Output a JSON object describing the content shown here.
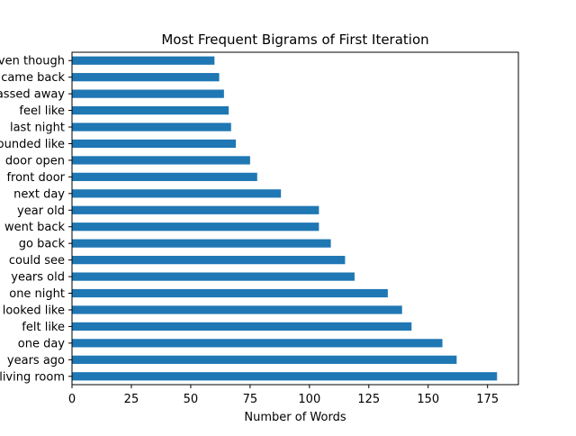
{
  "colors": {
    "bar": "#1f77b4",
    "axis": "#000000",
    "background": "#ffffff"
  },
  "chart_data": {
    "type": "bar",
    "orientation": "horizontal",
    "title": "Most Frequent Bigrams of First Iteration",
    "xlabel": "Number of Words",
    "ylabel": "",
    "xlim": [
      0,
      188
    ],
    "xticks": [
      0,
      25,
      50,
      75,
      100,
      125,
      150,
      175
    ],
    "grid": false,
    "legend": "none",
    "categories": [
      "living room",
      "years ago",
      "one day",
      "felt like",
      "looked like",
      "one night",
      "years old",
      "could see",
      "go back",
      "went back",
      "year old",
      "next day",
      "front door",
      "door open",
      "sounded like",
      "last night",
      "feel like",
      "passed away",
      "came back",
      "even though"
    ],
    "values": [
      179,
      162,
      156,
      143,
      139,
      133,
      119,
      115,
      109,
      104,
      104,
      88,
      78,
      75,
      69,
      67,
      66,
      64,
      62,
      60
    ]
  }
}
